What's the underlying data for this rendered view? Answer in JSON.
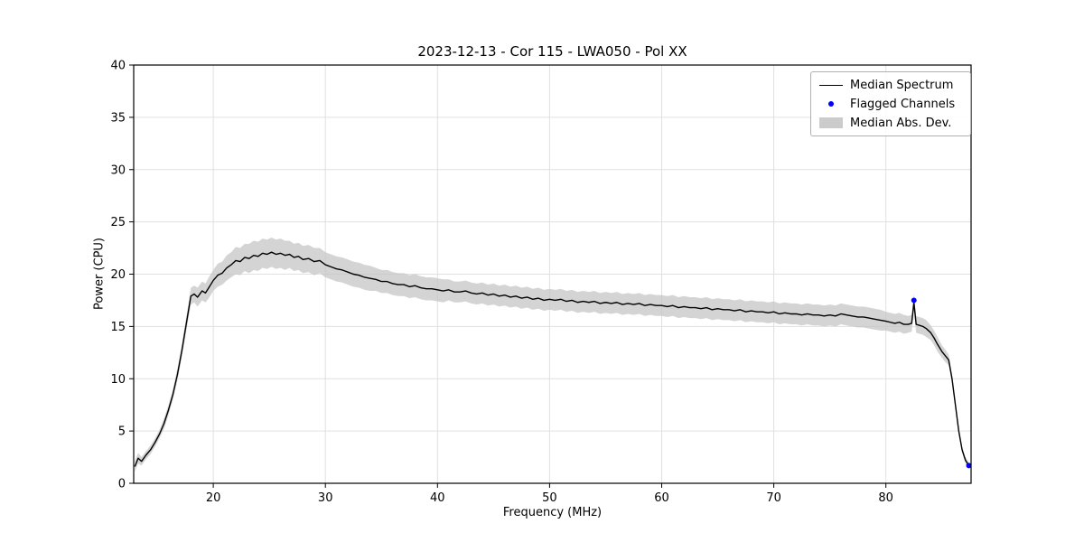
{
  "chart_data": {
    "type": "line",
    "title": "2023-12-13 - Cor 115 - LWA050 - Pol XX",
    "xlabel": "Frequency (MHz)",
    "ylabel": "Power (CPU)",
    "xlim": [
      12.9,
      87.6
    ],
    "ylim": [
      0,
      40
    ],
    "xticks": [
      20,
      30,
      40,
      50,
      60,
      70,
      80
    ],
    "yticks": [
      0,
      5,
      10,
      15,
      20,
      25,
      30,
      35,
      40
    ],
    "grid": true,
    "colors": {
      "median_line": "#000000",
      "mad_band": "#c6c6c6",
      "flagged": "#0000ff",
      "grid": "#e0e0e0",
      "spine": "#000000"
    },
    "legend": {
      "position": "upper right",
      "entries": [
        {
          "label": "Median Spectrum",
          "type": "line",
          "color": "#000000"
        },
        {
          "label": "Flagged Channels",
          "type": "dot",
          "color": "#0000ff"
        },
        {
          "label": "Median Abs. Dev.",
          "type": "patch",
          "color": "#cbcbcb"
        }
      ]
    },
    "series": {
      "median": {
        "name": "Median Spectrum",
        "points_format": [
          "freq_mhz",
          "power_cpu",
          "mad_half_width"
        ],
        "points": [
          [
            13.0,
            1.6,
            0.5
          ],
          [
            13.3,
            2.4,
            0.5
          ],
          [
            13.6,
            2.1,
            0.4
          ],
          [
            14.0,
            2.7,
            0.4
          ],
          [
            14.4,
            3.2,
            0.4
          ],
          [
            14.8,
            3.9,
            0.4
          ],
          [
            15.2,
            4.7,
            0.4
          ],
          [
            15.6,
            5.7,
            0.5
          ],
          [
            16.0,
            7.0,
            0.5
          ],
          [
            16.4,
            8.5,
            0.5
          ],
          [
            16.8,
            10.4,
            0.6
          ],
          [
            17.2,
            12.7,
            0.6
          ],
          [
            17.6,
            15.3,
            0.7
          ],
          [
            18.0,
            17.9,
            0.8
          ],
          [
            18.3,
            18.1,
            0.8
          ],
          [
            18.6,
            17.8,
            0.9
          ],
          [
            19.0,
            18.4,
            0.9
          ],
          [
            19.3,
            18.2,
            0.9
          ],
          [
            19.6,
            18.7,
            1.0
          ],
          [
            20.0,
            19.4,
            1.0
          ],
          [
            20.4,
            19.9,
            1.1
          ],
          [
            20.8,
            20.1,
            1.1
          ],
          [
            21.2,
            20.6,
            1.2
          ],
          [
            21.6,
            20.9,
            1.2
          ],
          [
            22.0,
            21.3,
            1.3
          ],
          [
            22.4,
            21.2,
            1.3
          ],
          [
            22.8,
            21.6,
            1.3
          ],
          [
            23.2,
            21.5,
            1.4
          ],
          [
            23.6,
            21.8,
            1.4
          ],
          [
            24.0,
            21.7,
            1.4
          ],
          [
            24.4,
            22.0,
            1.4
          ],
          [
            24.8,
            21.9,
            1.4
          ],
          [
            25.2,
            22.1,
            1.4
          ],
          [
            25.6,
            21.9,
            1.4
          ],
          [
            26.0,
            22.0,
            1.4
          ],
          [
            26.4,
            21.8,
            1.4
          ],
          [
            26.8,
            21.9,
            1.3
          ],
          [
            27.2,
            21.6,
            1.3
          ],
          [
            27.6,
            21.7,
            1.3
          ],
          [
            28.0,
            21.4,
            1.3
          ],
          [
            28.5,
            21.5,
            1.3
          ],
          [
            29.0,
            21.2,
            1.3
          ],
          [
            29.5,
            21.3,
            1.2
          ],
          [
            30.0,
            20.9,
            1.2
          ],
          [
            30.5,
            20.7,
            1.2
          ],
          [
            31.0,
            20.5,
            1.2
          ],
          [
            31.5,
            20.4,
            1.2
          ],
          [
            32.0,
            20.2,
            1.2
          ],
          [
            32.5,
            20.0,
            1.2
          ],
          [
            33.0,
            19.9,
            1.2
          ],
          [
            33.5,
            19.7,
            1.2
          ],
          [
            34.0,
            19.6,
            1.2
          ],
          [
            34.5,
            19.5,
            1.1
          ],
          [
            35.0,
            19.3,
            1.1
          ],
          [
            35.5,
            19.3,
            1.1
          ],
          [
            36.0,
            19.1,
            1.1
          ],
          [
            36.5,
            19.0,
            1.1
          ],
          [
            37.0,
            19.0,
            1.1
          ],
          [
            37.5,
            18.8,
            1.1
          ],
          [
            38.0,
            18.9,
            1.1
          ],
          [
            38.5,
            18.7,
            1.1
          ],
          [
            39.0,
            18.6,
            1.1
          ],
          [
            39.5,
            18.6,
            1.1
          ],
          [
            40.0,
            18.5,
            1.1
          ],
          [
            40.5,
            18.4,
            1.1
          ],
          [
            41.0,
            18.5,
            1.0
          ],
          [
            41.5,
            18.3,
            1.0
          ],
          [
            42.0,
            18.3,
            1.0
          ],
          [
            42.5,
            18.4,
            1.0
          ],
          [
            43.0,
            18.2,
            1.0
          ],
          [
            43.5,
            18.1,
            1.0
          ],
          [
            44.0,
            18.2,
            1.0
          ],
          [
            44.5,
            18.0,
            1.0
          ],
          [
            45.0,
            18.1,
            1.0
          ],
          [
            45.5,
            17.9,
            1.0
          ],
          [
            46.0,
            18.0,
            1.0
          ],
          [
            46.5,
            17.8,
            1.0
          ],
          [
            47.0,
            17.9,
            1.0
          ],
          [
            47.5,
            17.7,
            1.0
          ],
          [
            48.0,
            17.8,
            1.0
          ],
          [
            48.5,
            17.6,
            1.0
          ],
          [
            49.0,
            17.7,
            1.0
          ],
          [
            49.5,
            17.5,
            1.0
          ],
          [
            50.0,
            17.6,
            1.0
          ],
          [
            50.5,
            17.5,
            1.0
          ],
          [
            51.0,
            17.6,
            1.0
          ],
          [
            51.5,
            17.4,
            1.0
          ],
          [
            52.0,
            17.5,
            1.0
          ],
          [
            52.5,
            17.3,
            1.0
          ],
          [
            53.0,
            17.4,
            1.0
          ],
          [
            53.5,
            17.3,
            1.0
          ],
          [
            54.0,
            17.4,
            1.0
          ],
          [
            54.5,
            17.2,
            1.0
          ],
          [
            55.0,
            17.3,
            1.0
          ],
          [
            55.5,
            17.2,
            1.0
          ],
          [
            56.0,
            17.3,
            1.0
          ],
          [
            56.5,
            17.1,
            1.0
          ],
          [
            57.0,
            17.2,
            1.0
          ],
          [
            57.5,
            17.1,
            1.0
          ],
          [
            58.0,
            17.2,
            1.0
          ],
          [
            58.5,
            17.0,
            1.0
          ],
          [
            59.0,
            17.1,
            1.0
          ],
          [
            59.5,
            17.0,
            1.0
          ],
          [
            60.0,
            17.0,
            1.0
          ],
          [
            60.5,
            16.9,
            1.0
          ],
          [
            61.0,
            17.0,
            1.0
          ],
          [
            61.5,
            16.8,
            1.0
          ],
          [
            62.0,
            16.9,
            1.0
          ],
          [
            62.5,
            16.8,
            1.0
          ],
          [
            63.0,
            16.8,
            1.0
          ],
          [
            63.5,
            16.7,
            1.0
          ],
          [
            64.0,
            16.8,
            1.0
          ],
          [
            64.5,
            16.6,
            1.0
          ],
          [
            65.0,
            16.7,
            1.0
          ],
          [
            65.5,
            16.6,
            1.0
          ],
          [
            66.0,
            16.6,
            1.0
          ],
          [
            66.5,
            16.5,
            1.0
          ],
          [
            67.0,
            16.6,
            1.0
          ],
          [
            67.5,
            16.4,
            1.0
          ],
          [
            68.0,
            16.5,
            1.0
          ],
          [
            68.5,
            16.4,
            1.0
          ],
          [
            69.0,
            16.4,
            1.0
          ],
          [
            69.5,
            16.3,
            1.0
          ],
          [
            70.0,
            16.4,
            1.0
          ],
          [
            70.5,
            16.2,
            1.0
          ],
          [
            71.0,
            16.3,
            1.0
          ],
          [
            71.5,
            16.2,
            1.0
          ],
          [
            72.0,
            16.2,
            1.0
          ],
          [
            72.5,
            16.1,
            1.0
          ],
          [
            73.0,
            16.2,
            1.0
          ],
          [
            73.5,
            16.1,
            1.0
          ],
          [
            74.0,
            16.1,
            1.0
          ],
          [
            74.5,
            16.0,
            1.0
          ],
          [
            75.0,
            16.1,
            1.0
          ],
          [
            75.5,
            16.0,
            1.0
          ],
          [
            76.0,
            16.2,
            1.0
          ],
          [
            76.5,
            16.1,
            1.0
          ],
          [
            77.0,
            16.0,
            1.0
          ],
          [
            77.5,
            15.9,
            1.0
          ],
          [
            78.0,
            15.9,
            1.0
          ],
          [
            78.5,
            15.8,
            1.0
          ],
          [
            79.0,
            15.7,
            1.0
          ],
          [
            79.5,
            15.6,
            1.0
          ],
          [
            80.0,
            15.5,
            0.9
          ],
          [
            80.4,
            15.4,
            0.9
          ],
          [
            80.8,
            15.3,
            0.9
          ],
          [
            81.2,
            15.4,
            0.9
          ],
          [
            81.6,
            15.2,
            0.9
          ],
          [
            82.0,
            15.2,
            0.8
          ],
          [
            82.3,
            15.3,
            0.8
          ],
          [
            82.5,
            17.3,
            0.8
          ],
          [
            82.7,
            15.2,
            0.8
          ],
          [
            83.0,
            15.1,
            0.8
          ],
          [
            83.3,
            15.0,
            0.8
          ],
          [
            83.6,
            14.8,
            0.8
          ],
          [
            84.0,
            14.4,
            0.7
          ],
          [
            84.3,
            13.9,
            0.7
          ],
          [
            84.6,
            13.3,
            0.7
          ],
          [
            85.0,
            12.6,
            0.6
          ],
          [
            85.3,
            12.2,
            0.6
          ],
          [
            85.6,
            11.8,
            0.5
          ],
          [
            85.9,
            10.0,
            0.4
          ],
          [
            86.2,
            7.5,
            0.4
          ],
          [
            86.5,
            5.0,
            0.3
          ],
          [
            86.8,
            3.2,
            0.3
          ],
          [
            87.1,
            2.2,
            0.3
          ],
          [
            87.4,
            1.7,
            0.3
          ]
        ]
      },
      "flagged": {
        "name": "Flagged Channels",
        "points": [
          [
            82.5,
            17.5
          ],
          [
            87.4,
            1.7
          ]
        ]
      },
      "mad": {
        "name": "Median Abs. Dev.",
        "note": "band = median power +/- mad_half_width"
      }
    }
  }
}
